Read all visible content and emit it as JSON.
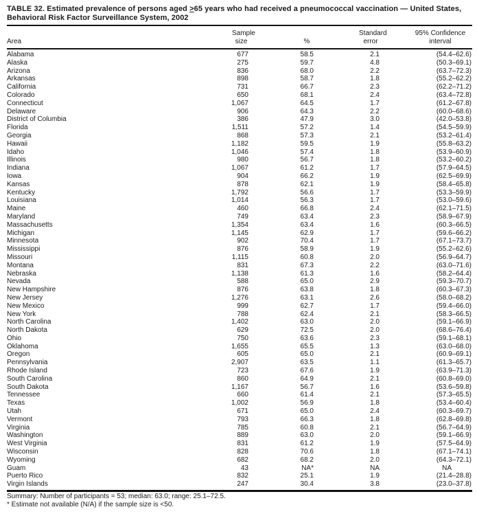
{
  "title": {
    "prefix": "TABLE 32. Estimated prevalence of persons aged ",
    "geq": ">",
    "suffix": "65 years who had received a pneumococcal vaccination — United States, Behavioral Risk Factor Surveillance System, 2002"
  },
  "table": {
    "headers": {
      "area": "Area",
      "sample_line1": "Sample",
      "sample_line2": "size",
      "percent": "%",
      "se_line1": "Standard",
      "se_line2": "error",
      "ci_line1": "95% Confidence",
      "ci_line2": "interval"
    },
    "rows": [
      {
        "area": "Alabama",
        "sample_size": "677",
        "percent": "58.5",
        "standard_error": "2.1",
        "confidence_interval": "(54.4–62.6)"
      },
      {
        "area": "Alaska",
        "sample_size": "275",
        "percent": "59.7",
        "standard_error": "4.8",
        "confidence_interval": "(50.3–69.1)"
      },
      {
        "area": "Arizona",
        "sample_size": "836",
        "percent": "68.0",
        "standard_error": "2.2",
        "confidence_interval": "(63.7–72.3)"
      },
      {
        "area": "Arkansas",
        "sample_size": "898",
        "percent": "58.7",
        "standard_error": "1.8",
        "confidence_interval": "(55.2–62.2)"
      },
      {
        "area": "California",
        "sample_size": "731",
        "percent": "66.7",
        "standard_error": "2.3",
        "confidence_interval": "(62.2–71.2)"
      },
      {
        "area": "Colorado",
        "sample_size": "650",
        "percent": "68.1",
        "standard_error": "2.4",
        "confidence_interval": "(63.4–72.8)"
      },
      {
        "area": "Connecticut",
        "sample_size": "1,067",
        "percent": "64.5",
        "standard_error": "1.7",
        "confidence_interval": "(61.2–67.8)"
      },
      {
        "area": "Delaware",
        "sample_size": "906",
        "percent": "64.3",
        "standard_error": "2.2",
        "confidence_interval": "(60.0–68.6)"
      },
      {
        "area": "District of Columbia",
        "sample_size": "386",
        "percent": "47.9",
        "standard_error": "3.0",
        "confidence_interval": "(42.0–53.8)"
      },
      {
        "area": "Florida",
        "sample_size": "1,511",
        "percent": "57.2",
        "standard_error": "1.4",
        "confidence_interval": "(54.5–59.9)"
      },
      {
        "area": "Georgia",
        "sample_size": "868",
        "percent": "57.3",
        "standard_error": "2.1",
        "confidence_interval": "(53.2–61.4)"
      },
      {
        "area": "Hawaii",
        "sample_size": "1,182",
        "percent": "59.5",
        "standard_error": "1.9",
        "confidence_interval": "(55.8–63.2)"
      },
      {
        "area": "Idaho",
        "sample_size": "1,046",
        "percent": "57.4",
        "standard_error": "1.8",
        "confidence_interval": "(53.9–60.9)"
      },
      {
        "area": "Illinois",
        "sample_size": "980",
        "percent": "56.7",
        "standard_error": "1.8",
        "confidence_interval": "(53.2–60.2)"
      },
      {
        "area": "Indiana",
        "sample_size": "1,067",
        "percent": "61.2",
        "standard_error": "1.7",
        "confidence_interval": "(57.9–64.5)"
      },
      {
        "area": "Iowa",
        "sample_size": "904",
        "percent": "66.2",
        "standard_error": "1.9",
        "confidence_interval": "(62.5–69.9)"
      },
      {
        "area": "Kansas",
        "sample_size": "878",
        "percent": "62.1",
        "standard_error": "1.9",
        "confidence_interval": "(58.4–65.8)"
      },
      {
        "area": "Kentucky",
        "sample_size": "1,792",
        "percent": "56.6",
        "standard_error": "1.7",
        "confidence_interval": "(53.3–59.9)"
      },
      {
        "area": "Louisiana",
        "sample_size": "1,014",
        "percent": "56.3",
        "standard_error": "1.7",
        "confidence_interval": "(53.0–59.6)"
      },
      {
        "area": "Maine",
        "sample_size": "460",
        "percent": "66.8",
        "standard_error": "2.4",
        "confidence_interval": "(62.1–71.5)"
      },
      {
        "area": "Maryland",
        "sample_size": "749",
        "percent": "63.4",
        "standard_error": "2.3",
        "confidence_interval": "(58.9–67.9)"
      },
      {
        "area": "Massachusetts",
        "sample_size": "1,354",
        "percent": "63.4",
        "standard_error": "1.6",
        "confidence_interval": "(60.3–66.5)"
      },
      {
        "area": "Michigan",
        "sample_size": "1,145",
        "percent": "62.9",
        "standard_error": "1.7",
        "confidence_interval": "(59.6–66.2)"
      },
      {
        "area": "Minnesota",
        "sample_size": "902",
        "percent": "70.4",
        "standard_error": "1.7",
        "confidence_interval": "(67.1–73.7)"
      },
      {
        "area": "Mississippi",
        "sample_size": "876",
        "percent": "58.9",
        "standard_error": "1.9",
        "confidence_interval": "(55.2–62.6)"
      },
      {
        "area": "Missouri",
        "sample_size": "1,115",
        "percent": "60.8",
        "standard_error": "2.0",
        "confidence_interval": "(56.9–64.7)"
      },
      {
        "area": "Montana",
        "sample_size": "831",
        "percent": "67.3",
        "standard_error": "2.2",
        "confidence_interval": "(63.0–71.6)"
      },
      {
        "area": "Nebraska",
        "sample_size": "1,138",
        "percent": "61.3",
        "standard_error": "1.6",
        "confidence_interval": "(58.2–64.4)"
      },
      {
        "area": "Nevada",
        "sample_size": "588",
        "percent": "65.0",
        "standard_error": "2.9",
        "confidence_interval": "(59.3–70.7)"
      },
      {
        "area": "New Hampshire",
        "sample_size": "876",
        "percent": "63.8",
        "standard_error": "1.8",
        "confidence_interval": "(60.3–67.3)"
      },
      {
        "area": "New Jersey",
        "sample_size": "1,276",
        "percent": "63.1",
        "standard_error": "2.6",
        "confidence_interval": "(58.0–68.2)"
      },
      {
        "area": "New Mexico",
        "sample_size": "999",
        "percent": "62.7",
        "standard_error": "1.7",
        "confidence_interval": "(59.4–66.0)"
      },
      {
        "area": "New York",
        "sample_size": "788",
        "percent": "62.4",
        "standard_error": "2.1",
        "confidence_interval": "(58.3–66.5)"
      },
      {
        "area": "North Carolina",
        "sample_size": "1,402",
        "percent": "63.0",
        "standard_error": "2.0",
        "confidence_interval": "(59.1–66.9)"
      },
      {
        "area": "North Dakota",
        "sample_size": "629",
        "percent": "72.5",
        "standard_error": "2.0",
        "confidence_interval": "(68.6–76.4)"
      },
      {
        "area": "Ohio",
        "sample_size": "750",
        "percent": "63.6",
        "standard_error": "2.3",
        "confidence_interval": "(59.1–68.1)"
      },
      {
        "area": "Oklahoma",
        "sample_size": "1,655",
        "percent": "65.5",
        "standard_error": "1.3",
        "confidence_interval": "(63.0–68.0)"
      },
      {
        "area": "Oregon",
        "sample_size": "605",
        "percent": "65.0",
        "standard_error": "2.1",
        "confidence_interval": "(60.9–69.1)"
      },
      {
        "area": "Pennsylvania",
        "sample_size": "2,907",
        "percent": "63.5",
        "standard_error": "1.1",
        "confidence_interval": "(61.3–65.7)"
      },
      {
        "area": "Rhode Island",
        "sample_size": "723",
        "percent": "67.6",
        "standard_error": "1.9",
        "confidence_interval": "(63.9–71.3)"
      },
      {
        "area": "South Carolina",
        "sample_size": "860",
        "percent": "64.9",
        "standard_error": "2.1",
        "confidence_interval": "(60.8–69.0)"
      },
      {
        "area": "South Dakota",
        "sample_size": "1,167",
        "percent": "56.7",
        "standard_error": "1.6",
        "confidence_interval": "(53.6–59.8)"
      },
      {
        "area": "Tennessee",
        "sample_size": "660",
        "percent": "61.4",
        "standard_error": "2.1",
        "confidence_interval": "(57.3–65.5)"
      },
      {
        "area": "Texas",
        "sample_size": "1,002",
        "percent": "56.9",
        "standard_error": "1.8",
        "confidence_interval": "(53.4–60.4)"
      },
      {
        "area": "Utah",
        "sample_size": "671",
        "percent": "65.0",
        "standard_error": "2.4",
        "confidence_interval": "(60.3–69.7)"
      },
      {
        "area": "Vermont",
        "sample_size": "793",
        "percent": "66.3",
        "standard_error": "1.8",
        "confidence_interval": "(62.8–69.8)"
      },
      {
        "area": "Virginia",
        "sample_size": "785",
        "percent": "60.8",
        "standard_error": "2.1",
        "confidence_interval": "(56.7–64.9)"
      },
      {
        "area": "Washington",
        "sample_size": "889",
        "percent": "63.0",
        "standard_error": "2.0",
        "confidence_interval": "(59.1–66.9)"
      },
      {
        "area": "West Virginia",
        "sample_size": "831",
        "percent": "61.2",
        "standard_error": "1.9",
        "confidence_interval": "(57.5–64.9)"
      },
      {
        "area": "Wisconsin",
        "sample_size": "828",
        "percent": "70.6",
        "standard_error": "1.8",
        "confidence_interval": "(67.1–74.1)"
      },
      {
        "area": "Wyoming",
        "sample_size": "682",
        "percent": "68.2",
        "standard_error": "2.0",
        "confidence_interval": "(64.3–72.1)"
      },
      {
        "area": "Guam",
        "sample_size": "43",
        "percent": "NA*",
        "standard_error": "NA",
        "confidence_interval": "NA"
      },
      {
        "area": "Puerto Rico",
        "sample_size": "832",
        "percent": "25.1",
        "standard_error": "1.9",
        "confidence_interval": "(21.4–28.8)"
      },
      {
        "area": "Virgin Islands",
        "sample_size": "247",
        "percent": "30.4",
        "standard_error": "3.8",
        "confidence_interval": "(23.0–37.8)"
      }
    ]
  },
  "footnotes": {
    "summary": "Summary: Number of participants = 53; median: 63.0; range: 25.1–72.5.",
    "note": "* Estimate not available (N/A) if the sample size is <50."
  }
}
